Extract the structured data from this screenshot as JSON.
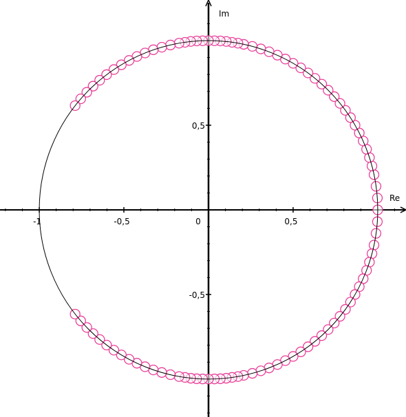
{
  "chart_data": {
    "type": "scatter",
    "x_label": "Re",
    "y_label": "Im",
    "color": "#e8409a",
    "xlim": [
      -1.232,
      1.167
    ],
    "ylim": [
      -1.224,
      1.24
    ],
    "xticks": [
      {
        "value": -1,
        "label": "-1"
      },
      {
        "value": -0.5,
        "label": "-0,5"
      },
      0,
      {
        "value": 0.5,
        "label": "0,5"
      }
    ],
    "yticks": [
      {
        "value": 0.5,
        "label": "0,5"
      },
      {
        "value": -0.5,
        "label": "-0,5"
      }
    ],
    "minor_ticks": [
      -1.2,
      -1.1,
      -1,
      -0.9,
      -0.8,
      -0.7,
      -0.6,
      -0.5,
      -0.4,
      -0.3,
      -0.2,
      -0.1,
      0.1,
      0.2,
      0.3,
      0.4,
      0.5,
      0.6,
      0.7,
      0.8,
      0.9,
      1,
      1.1
    ],
    "x": [
      1,
      0.998,
      0.99,
      0.978,
      0.966,
      0.951,
      0.934,
      0.914,
      0.891,
      0.866,
      0.839,
      0.809,
      0.777,
      0.743,
      0.707,
      0.669,
      0.629,
      0.588,
      0.545,
      0.5,
      0.454,
      0.407,
      0.358,
      0.309,
      0.259,
      0.208,
      0.174,
      0.139,
      0.105,
      0.07,
      0.035,
      0,
      -0.035,
      -0.07,
      -0.105,
      -0.139,
      -0.174,
      -0.225,
      -0.276,
      -0.326,
      -0.375,
      -0.423,
      -0.469,
      -0.515,
      -0.559,
      -0.602,
      -0.643,
      -0.682,
      -0.719,
      -0.755,
      -0.788,
      0.998,
      0.99,
      0.978,
      0.966,
      0.951,
      0.934,
      0.914,
      0.891,
      0.866,
      0.839,
      0.809,
      0.777,
      0.743,
      0.707,
      0.669,
      0.629,
      0.588,
      0.545,
      0.5,
      0.454,
      0.407,
      0.358,
      0.309,
      0.259,
      0.208,
      0.174,
      0.139,
      0.105,
      0.07,
      0.035,
      0,
      -0.035,
      -0.07,
      -0.105,
      -0.139,
      -0.174,
      -0.225,
      -0.276,
      -0.326,
      -0.375,
      -0.423,
      -0.469,
      -0.515,
      -0.559,
      -0.602,
      -0.643,
      -0.682,
      -0.719,
      -0.755,
      -0.788
    ],
    "y": [
      0,
      0.07,
      0.139,
      0.208,
      0.259,
      0.309,
      0.358,
      0.407,
      0.454,
      0.5,
      0.545,
      0.588,
      0.629,
      0.669,
      0.707,
      0.743,
      0.777,
      0.809,
      0.839,
      0.866,
      0.891,
      0.914,
      0.934,
      0.951,
      0.966,
      0.978,
      0.985,
      0.99,
      0.995,
      0.998,
      0.999,
      1,
      0.999,
      0.998,
      0.995,
      0.99,
      0.985,
      0.974,
      0.961,
      0.946,
      0.927,
      0.906,
      0.883,
      0.857,
      0.829,
      0.799,
      0.766,
      0.731,
      0.695,
      0.656,
      0.616,
      -0.07,
      -0.139,
      -0.208,
      -0.259,
      -0.309,
      -0.358,
      -0.407,
      -0.454,
      -0.5,
      -0.545,
      -0.588,
      -0.629,
      -0.669,
      -0.707,
      -0.743,
      -0.777,
      -0.809,
      -0.839,
      -0.866,
      -0.891,
      -0.914,
      -0.934,
      -0.951,
      -0.966,
      -0.978,
      -0.985,
      -0.99,
      -0.995,
      -0.998,
      -0.999,
      -1,
      -0.999,
      -0.998,
      -0.995,
      -0.99,
      -0.985,
      -0.974,
      -0.961,
      -0.946,
      -0.927,
      -0.906,
      -0.883,
      -0.857,
      -0.829,
      -0.799,
      -0.766,
      -0.731,
      -0.695,
      -0.656,
      -0.616
    ]
  }
}
